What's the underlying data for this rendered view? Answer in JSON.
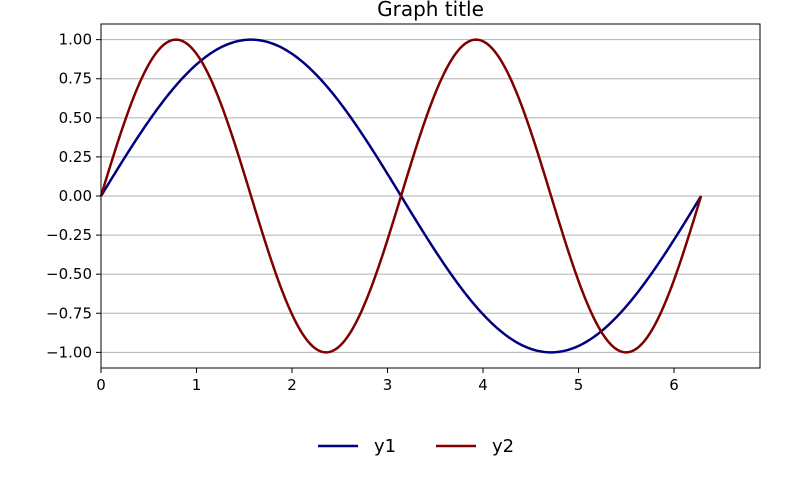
{
  "chart_data": {
    "type": "line",
    "title": "Graph title",
    "xlabel": "",
    "ylabel": "",
    "xlim": [
      0,
      6.9
    ],
    "ylim": [
      -1.1,
      1.1
    ],
    "x_ticks": [
      0,
      1,
      2,
      3,
      4,
      5,
      6
    ],
    "x_tick_labels": [
      "0",
      "1",
      "2",
      "3",
      "4",
      "5",
      "6"
    ],
    "y_ticks": [
      1.0,
      0.75,
      0.5,
      0.25,
      0.0,
      -0.25,
      -0.5,
      -0.75,
      -1.0
    ],
    "y_tick_labels": [
      "1.00",
      "0.75",
      "0.50",
      "0.25",
      "0.00",
      "−0.25",
      "−0.50",
      "−0.75",
      "−1.00"
    ],
    "grid": "horizontal",
    "legend_position": "bottom-center",
    "x_range": [
      0,
      6.2832
    ],
    "series": [
      {
        "name": "y1",
        "color": "#000080",
        "x": [
          0,
          0.5,
          1.0,
          1.5708,
          2.0,
          2.5,
          3.1416,
          3.5,
          4.0,
          4.7124,
          5.0,
          5.5,
          6.0,
          6.2832
        ],
        "values": [
          0.0,
          0.479,
          0.841,
          1.0,
          0.909,
          0.598,
          0.0,
          -0.351,
          -0.757,
          -1.0,
          -0.959,
          -0.706,
          -0.279,
          0.0
        ]
      },
      {
        "name": "y2",
        "color": "#800000",
        "x": [
          0,
          0.3927,
          0.7854,
          1.1781,
          1.5708,
          1.9635,
          2.3562,
          2.7489,
          3.1416,
          3.5343,
          3.927,
          4.3197,
          4.7124,
          5.1051,
          5.4978,
          5.8905,
          6.2832
        ],
        "values": [
          0.0,
          0.707,
          1.0,
          0.707,
          0.0,
          -0.707,
          -1.0,
          -0.707,
          0.0,
          0.707,
          1.0,
          0.707,
          0.0,
          -0.707,
          -1.0,
          -0.707,
          0.0
        ]
      }
    ]
  }
}
